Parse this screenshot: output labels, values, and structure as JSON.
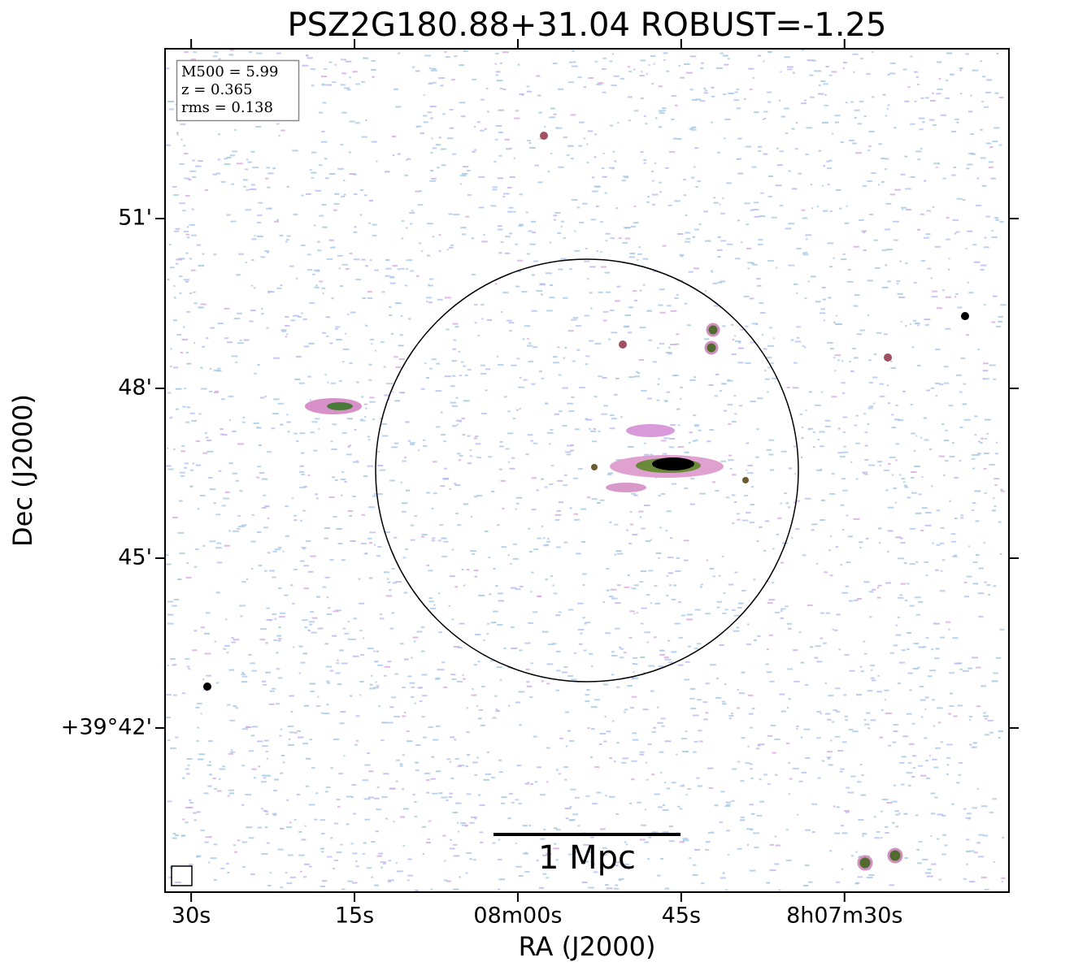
{
  "chart_data": {
    "type": "image",
    "title": "PSZ2G180.88+31.04 ROBUST=-1.25",
    "x_label": "RA (J2000)",
    "y_label": "Dec (J2000)",
    "xlim": [
      92.4,
      14.9
    ],
    "ylim": [
      39.1,
      54.0
    ],
    "xticks": [
      {
        "value": 90,
        "label": "30s"
      },
      {
        "value": 75,
        "label": "15s"
      },
      {
        "value": 60,
        "label": "08m00s"
      },
      {
        "value": 45,
        "label": "45s"
      },
      {
        "value": 30,
        "label": "8h07m30s"
      }
    ],
    "yticks": [
      {
        "value": 51,
        "label": "51'"
      },
      {
        "value": 48,
        "label": "48'"
      },
      {
        "value": 45,
        "label": "45'"
      },
      {
        "value": 42,
        "label": "+39°42'"
      }
    ],
    "annotations": [
      "M500 = 5.99",
      "z = 0.365",
      "rms = 0.138"
    ],
    "scale_bar_label": "1 Mpc"
  }
}
